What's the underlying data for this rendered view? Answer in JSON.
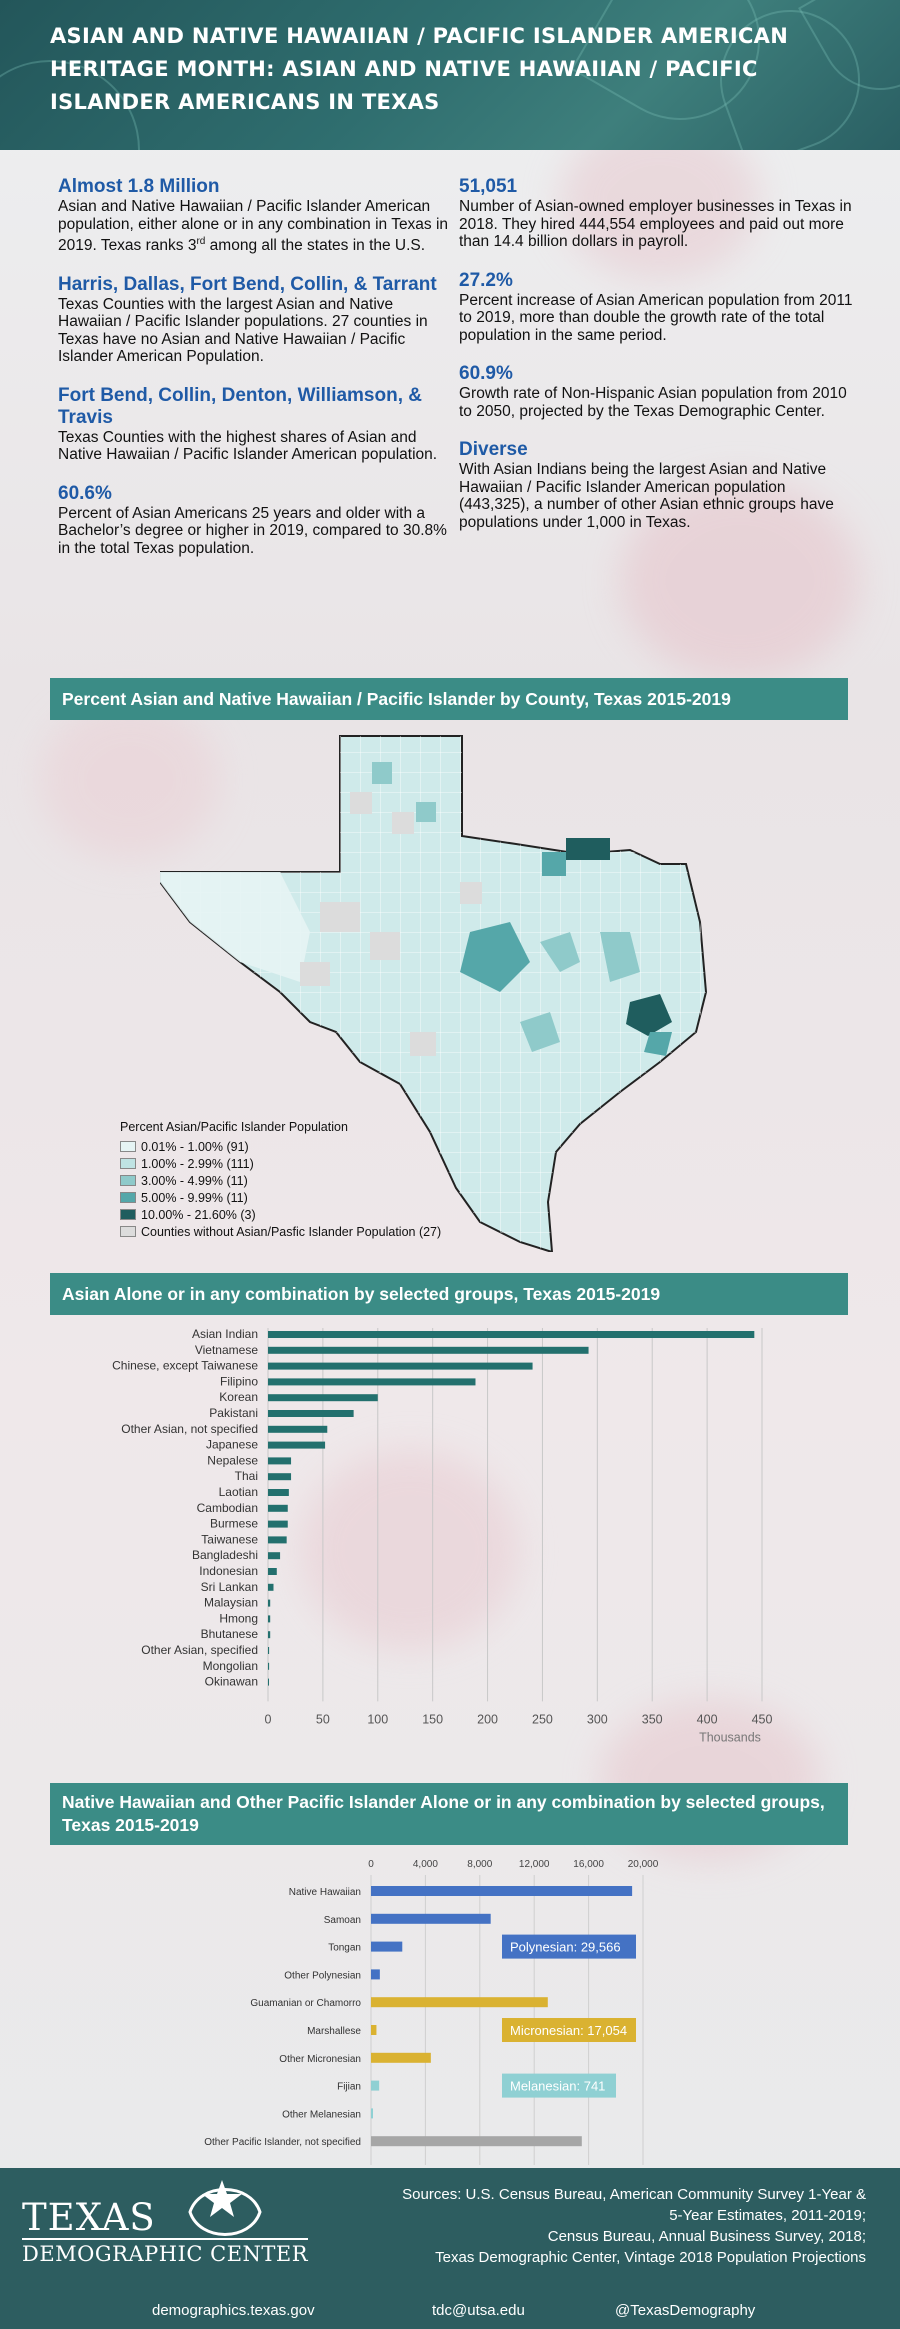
{
  "header": {
    "title": "ASIAN AND NATIVE HAWAIIAN / PACIFIC ISLANDER AMERICAN HERITAGE MONTH: ASIAN AND NATIVE HAWAIIAN / PACIFIC ISLANDER AMERICANS IN TEXAS"
  },
  "facts_left": [
    {
      "title": "Almost 1.8 Million",
      "text_before": "Asian and Native Hawaiian / Pacific Islander American population, either alone or in any combination in Texas in 2019. Texas ranks 3",
      "sup": "rd",
      "text_after": " among all the states in the U.S."
    },
    {
      "title": "Harris, Dallas, Fort Bend, Collin, & Tarrant",
      "text": "Texas Counties with the largest Asian and Native Hawaiian / Pacific Islander populations. 27 counties in Texas have no Asian and Native Hawaiian / Pacific Islander American Population."
    },
    {
      "title": "Fort Bend, Collin, Denton, Williamson, & Travis",
      "text": "Texas Counties with the highest shares of Asian and Native Hawaiian / Pacific Islander American population."
    },
    {
      "title": "60.6%",
      "text": "Percent of Asian Americans 25 years and older with a Bachelor’s degree or higher in 2019, compared to 30.8% in the total Texas population."
    }
  ],
  "facts_right": [
    {
      "title": "51,051",
      "text": "Number of Asian-owned employer businesses in Texas in 2018. They hired 444,554 employees and paid out more than 14.4 billion dollars in payroll."
    },
    {
      "title": "27.2%",
      "text": "Percent increase of Asian American population from 2011 to 2019, more than double the growth rate of the total population in the same period."
    },
    {
      "title": "60.9%",
      "text": "Growth rate of Non-Hispanic Asian population from 2010 to 2050, projected by the Texas Demographic Center."
    },
    {
      "title": "Diverse",
      "text": "With Asian Indians being the largest Asian and Native Hawaiian / Pacific Islander American population (443,325), a number of other Asian ethnic groups have populations under 1,000 in Texas."
    }
  ],
  "map": {
    "title": "Percent Asian and Native Hawaiian / Pacific Islander by County, Texas 2015-2019",
    "legend_title": "Percent Asian/Pacific Islander Population",
    "legend": [
      {
        "label": "0.01% - 1.00% (91)",
        "color": "#e6f4f4"
      },
      {
        "label": "1.00% - 2.99% (111)",
        "color": "#bfe3e3"
      },
      {
        "label": "3.00% - 4.99% (11)",
        "color": "#8fcaca"
      },
      {
        "label": "5.00% - 9.99% (11)",
        "color": "#55a7a9"
      },
      {
        "label": "10.00% - 21.60% (3)",
        "color": "#1f5d5e"
      },
      {
        "label": "Counties without Asian/Pasfic Islander Population (27)",
        "color": "#dcdcdc"
      }
    ]
  },
  "chart_data": [
    {
      "type": "bar",
      "orientation": "horizontal",
      "title": "Asian Alone or in any combination by selected groups, Texas 2015-2019",
      "categories": [
        "Asian Indian",
        "Vietnamese",
        "Chinese, except Taiwanese",
        "Filipino",
        "Korean",
        "Pakistani",
        "Other Asian, not specified",
        "Japanese",
        "Nepalese",
        "Thai",
        "Laotian",
        "Cambodian",
        "Burmese",
        "Taiwanese",
        "Bangladeshi",
        "Indonesian",
        "Sri Lankan",
        "Malaysian",
        "Hmong",
        "Bhutanese",
        "Other Asian, specified",
        "Mongolian",
        "Okinawan"
      ],
      "values": [
        443,
        292,
        241,
        189,
        100,
        78,
        54,
        52,
        21,
        21,
        19,
        18,
        18,
        17,
        11,
        8,
        5,
        2,
        2,
        2,
        1,
        1,
        0.5
      ],
      "xlabel": "Thousands",
      "xlim": [
        0,
        450
      ],
      "xticks": [
        "0",
        "50",
        "100",
        "150",
        "200",
        "250",
        "300",
        "350",
        "400",
        "450"
      ],
      "color": "#23706e",
      "grid": true
    },
    {
      "type": "bar",
      "orientation": "horizontal",
      "title": "Native Hawaiian and Other Pacific Islander Alone or in any combination by selected groups, Texas 2015-2019",
      "categories": [
        "Native Hawaiian",
        "Samoan",
        "Tongan",
        "Other Polynesian",
        "Guamanian or Chamorro",
        "Marshallese",
        "Other Micronesian",
        "Fijian",
        "Other Melanesian",
        "Other Pacific Islander, not specified"
      ],
      "values": [
        19200,
        8800,
        2300,
        650,
        13000,
        400,
        4400,
        600,
        120,
        15500
      ],
      "bar_colors": [
        "#4472c4",
        "#4472c4",
        "#4472c4",
        "#4472c4",
        "#dab231",
        "#dab231",
        "#dab231",
        "#8fd0d3",
        "#8fd0d3",
        "#a6a6a6"
      ],
      "xlim": [
        0,
        20000
      ],
      "xticks": [
        "0",
        "4,000",
        "8,000",
        "12,000",
        "16,000",
        "20,000"
      ],
      "annotations": [
        {
          "label": "Polynesian: 29,566",
          "color": "#4472c4"
        },
        {
          "label": "Micronesian: 17,054",
          "color": "#dab231"
        },
        {
          "label": "Melanesian: 741",
          "color": "#8fd0d3"
        }
      ],
      "grid": true
    }
  ],
  "footer": {
    "logo_title": "TEXAS",
    "logo_sub": "DEMOGRAPHIC CENTER",
    "sources": [
      "Sources: U.S. Census Bureau, American Community Survey 1-Year &",
      "5-Year Estimates, 2011-2019;",
      "Census Bureau, Annual Business Survey, 2018;",
      "Texas Demographic Center, Vintage 2018 Population Projections"
    ],
    "website": "demographics.texas.gov",
    "email": "tdc@utsa.edu",
    "social": "@TexasDemography"
  }
}
